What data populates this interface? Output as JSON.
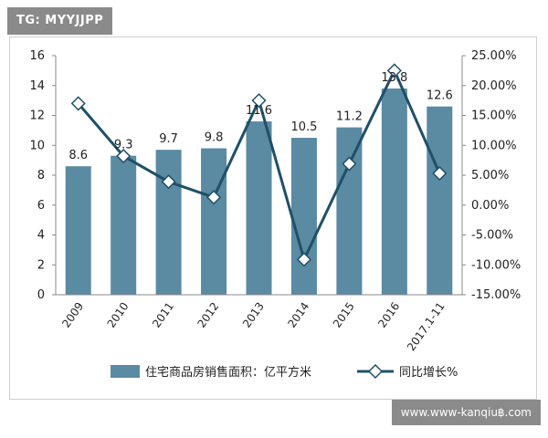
{
  "watermark": {
    "top_left": "TG: MYYJJPP",
    "bottom_right": "www.www-kanqiu฿.com"
  },
  "chart_data": {
    "type": "bar",
    "categories": [
      "2009",
      "2010",
      "2011",
      "2012",
      "2013",
      "2014",
      "2015",
      "2016",
      "2017.1-11"
    ],
    "series": [
      {
        "name": "住宅商品房销售面积：亿平方米",
        "type": "bar",
        "axis": "left",
        "color": "#5b8aa3",
        "values": [
          8.6,
          9.3,
          9.7,
          9.8,
          11.6,
          10.5,
          11.2,
          13.8,
          12.6
        ]
      },
      {
        "name": "同比增长%",
        "type": "line",
        "axis": "right",
        "color": "#1f5068",
        "marker": "diamond",
        "values": [
          17.0,
          8.2,
          3.9,
          1.3,
          17.5,
          -9.1,
          6.9,
          22.5,
          5.3
        ]
      }
    ],
    "left_axis": {
      "min": 0,
      "max": 16,
      "ticks": [
        "0",
        "2",
        "4",
        "6",
        "8",
        "10",
        "12",
        "14",
        "16"
      ]
    },
    "right_axis": {
      "min": -15,
      "max": 25,
      "ticks": [
        "-15.00%",
        "-10.00%",
        "-5.00%",
        "0.00%",
        "5.00%",
        "10.00%",
        "15.00%",
        "20.00%",
        "25.00%"
      ]
    },
    "bar_labels": [
      "8.6",
      "9.3",
      "9.7",
      "9.8",
      "11.6",
      "10.5",
      "11.2",
      "13.8",
      "12.6"
    ],
    "grid": false,
    "legend": "bottom"
  }
}
